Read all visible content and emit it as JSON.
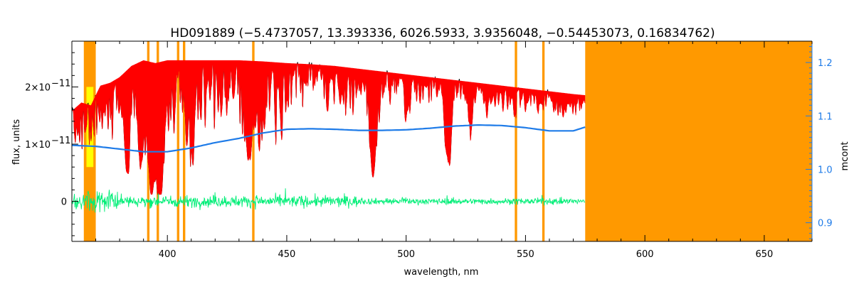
{
  "chart_data": {
    "type": "line",
    "title": "HD091889   (−5.4737057, 13.393336, 6026.5933, 3.9356048, −0.54453073, 0.16834762)",
    "xlabel": "wavelength, nm",
    "ylabel": "flux, units",
    "ylabel_right": "mcont",
    "xlim": [
      360,
      670
    ],
    "ylim": [
      -7e-12,
      2.8e-11
    ],
    "ylim_right": [
      0.865,
      1.24
    ],
    "x_ticks": [
      {
        "value": 400,
        "label": "400"
      },
      {
        "value": 450,
        "label": "450"
      },
      {
        "value": 500,
        "label": "500"
      },
      {
        "value": 550,
        "label": "550"
      },
      {
        "value": 600,
        "label": "600"
      },
      {
        "value": 650,
        "label": "650"
      }
    ],
    "y_ticks": [
      {
        "value": 0,
        "label": "0"
      },
      {
        "value": 1e-11,
        "label": "1×10",
        "exp": "−11"
      },
      {
        "value": 2e-11,
        "label": "2×10",
        "exp": "−11"
      }
    ],
    "y_ticks_right": [
      {
        "value": 0.9,
        "label": "0.9"
      },
      {
        "value": 1.0,
        "label": "1.0"
      },
      {
        "value": 1.1,
        "label": "1.1"
      },
      {
        "value": 1.2,
        "label": "1.2"
      }
    ],
    "masked_regions": [
      [
        365,
        370
      ],
      [
        391.5,
        392.5
      ],
      [
        395.5,
        396.5
      ],
      [
        404,
        405
      ],
      [
        406.5,
        407.5
      ],
      [
        435.5,
        436.5
      ],
      [
        545.5,
        546.5
      ],
      [
        557,
        558
      ],
      [
        575,
        670
      ]
    ],
    "highlight_regions": [
      [
        365.5,
        369
      ]
    ],
    "series": [
      {
        "role": "observed",
        "color": "#000000",
        "continuum_x": [
          360,
          364,
          368,
          372,
          376,
          380,
          385,
          390,
          395,
          400,
          405,
          410,
          420,
          430,
          440,
          450,
          460,
          470,
          480,
          490,
          500,
          510,
          520,
          530,
          540,
          550,
          560,
          570,
          575
        ],
        "continuum_y": [
          1.6e-11,
          1.75e-11,
          1.7e-11,
          2.05e-11,
          2.1e-11,
          2.2e-11,
          2.4e-11,
          2.5e-11,
          2.45e-11,
          2.5e-11,
          2.5e-11,
          2.5e-11,
          2.5e-11,
          2.5e-11,
          2.48e-11,
          2.45e-11,
          2.43e-11,
          2.4e-11,
          2.35e-11,
          2.3e-11,
          2.25e-11,
          2.2e-11,
          2.15e-11,
          2.1e-11,
          2.05e-11,
          2e-11,
          1.95e-11,
          1.9e-11,
          1.88e-11
        ]
      },
      {
        "role": "model",
        "color": "#ff0000",
        "x_range": [
          360,
          575
        ]
      },
      {
        "role": "residual",
        "color": "#00ee77",
        "x_range": [
          360,
          575
        ],
        "center": 0
      },
      {
        "role": "mcont",
        "axis": "right",
        "color": "#1e7be8",
        "x": [
          360,
          370,
          380,
          390,
          400,
          410,
          420,
          430,
          440,
          450,
          460,
          470,
          480,
          490,
          500,
          510,
          520,
          530,
          540,
          550,
          560,
          570,
          575
        ],
        "y": [
          1.045,
          1.043,
          1.038,
          1.033,
          1.033,
          1.04,
          1.05,
          1.058,
          1.068,
          1.075,
          1.076,
          1.075,
          1.073,
          1.073,
          1.074,
          1.077,
          1.081,
          1.083,
          1.082,
          1.078,
          1.072,
          1.072,
          1.079
        ]
      }
    ],
    "colors": {
      "mask": "#ff9900",
      "highlight": "#ffff00",
      "axis": "#000000",
      "right_axis": "#1e7be8"
    }
  }
}
